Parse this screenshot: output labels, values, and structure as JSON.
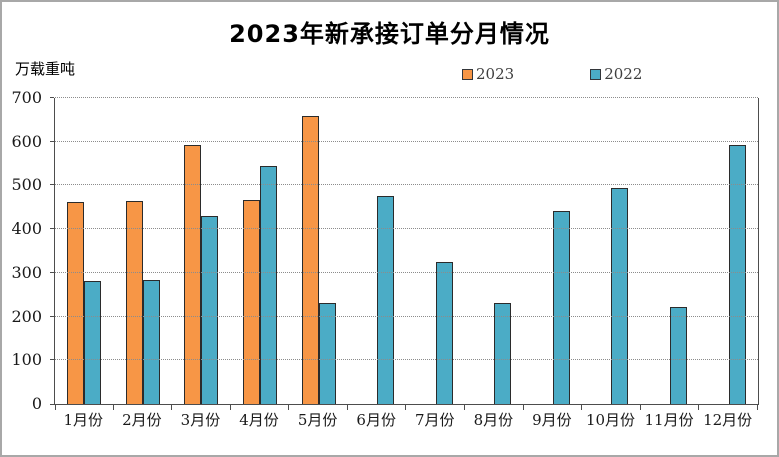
{
  "window": {
    "background": "#ffffff",
    "border_color": "#a8a8a8"
  },
  "chart_data": {
    "type": "bar",
    "title": "2023年新承接订单分月情况",
    "ylabel": "万载重吨",
    "xlabel": "",
    "categories": [
      "1月份",
      "2月份",
      "3月份",
      "4月份",
      "5月份",
      "6月份",
      "7月份",
      "8月份",
      "9月份",
      "10月份",
      "11月份",
      "12月份"
    ],
    "series": [
      {
        "name": "2023",
        "color": "#F79646",
        "values": [
          462,
          464,
          592,
          467,
          660,
          null,
          null,
          null,
          null,
          null,
          null,
          null
        ]
      },
      {
        "name": "2022",
        "color": "#4BACC6",
        "values": [
          282,
          283,
          429,
          545,
          230,
          476,
          326,
          232,
          441,
          494,
          221,
          592
        ]
      }
    ],
    "ylim": [
      0,
      700
    ],
    "yticks": [
      0,
      100,
      200,
      300,
      400,
      500,
      600,
      700
    ],
    "grid": "horizontal-dotted",
    "legend_position": "top-center",
    "bar_border_color": "#2b2b2b",
    "gridline_color": "#8c8c8c"
  }
}
